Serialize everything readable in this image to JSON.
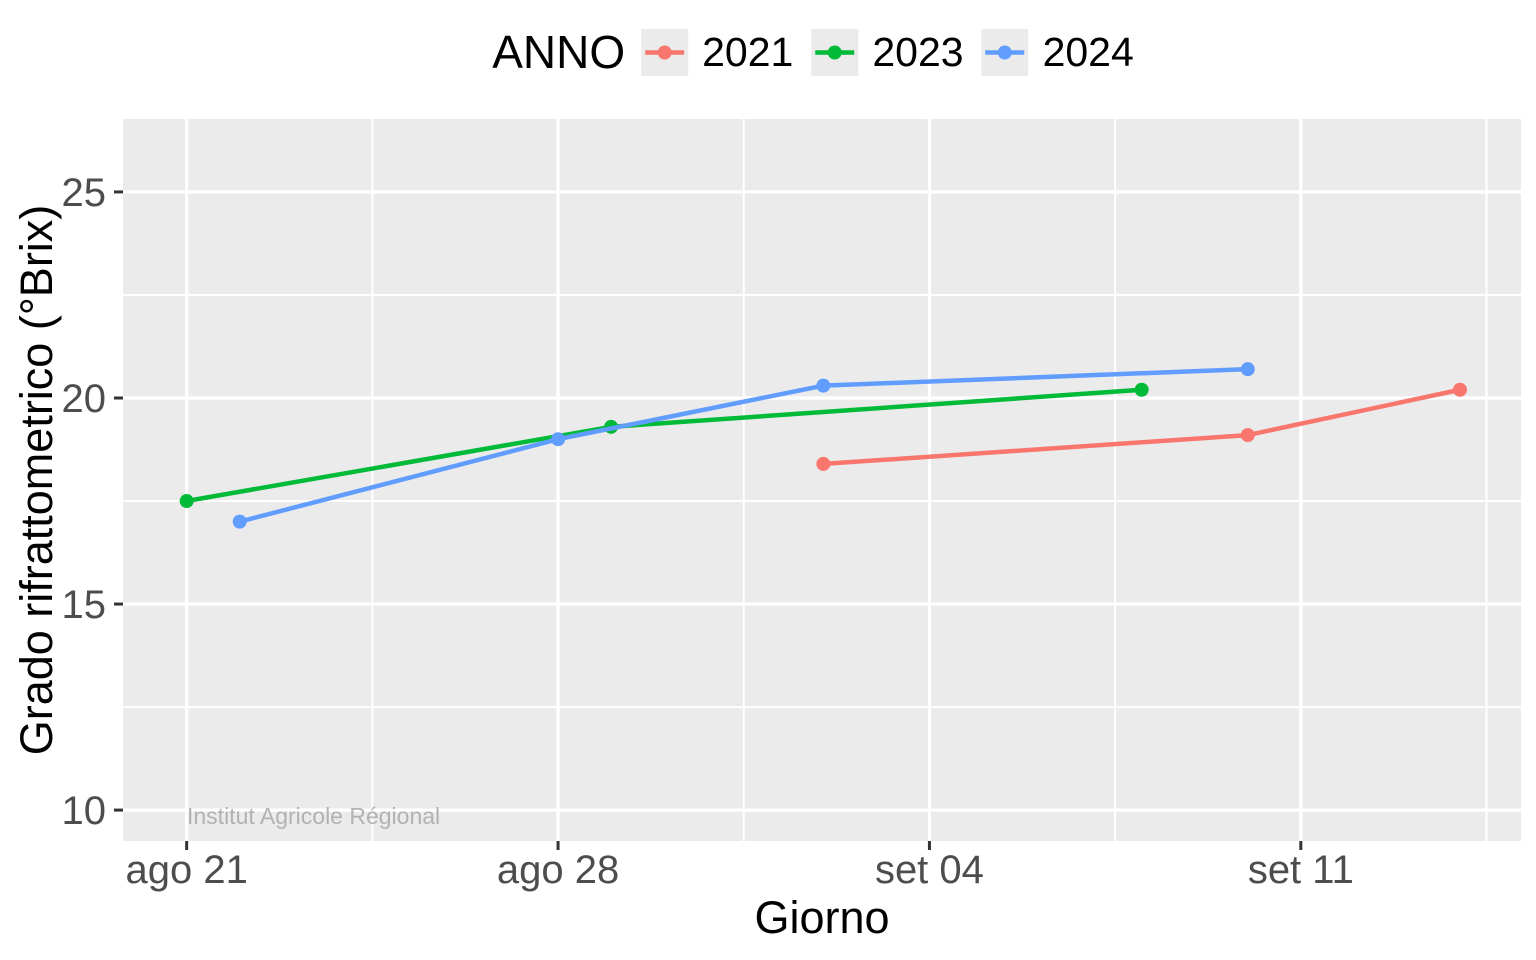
{
  "legend": {
    "title": "ANNO",
    "items": [
      {
        "label": "2021",
        "color": "#F8766D"
      },
      {
        "label": "2023",
        "color": "#00BA38"
      },
      {
        "label": "2024",
        "color": "#619CFF"
      }
    ]
  },
  "axes": {
    "x_title": "Giorno",
    "y_title": "Grado rifrattometrico (°Brix)"
  },
  "watermark": "Institut Agricole Régional",
  "chart_data": {
    "type": "line",
    "title": "",
    "xlabel": "Giorno",
    "ylabel": "Grado rifrattometrico (°Brix)",
    "legend_title": "ANNO",
    "legend_position": "top",
    "grid": true,
    "panel_bg": "#EBEBEB",
    "grid_color": "#FFFFFF",
    "tick_label_color": "#4d4d4d",
    "x_unit": "days since ago 21",
    "x_ticks": [
      {
        "day": 0,
        "label": "ago 21"
      },
      {
        "day": 7,
        "label": "ago 28"
      },
      {
        "day": 14,
        "label": "set 04"
      },
      {
        "day": 21,
        "label": "set 11"
      }
    ],
    "x_minor_days": [
      3.5,
      10.5,
      17.5,
      24.5
    ],
    "y_ticks": [
      10,
      15,
      20,
      25
    ],
    "y_minor": [
      12.5,
      17.5,
      22.5
    ],
    "x_domain_days": [
      -1.2,
      25.15
    ],
    "y_domain": [
      9.25,
      26.77
    ],
    "series": [
      {
        "name": "2021",
        "color": "#F8766D",
        "points": [
          {
            "date": "set 02",
            "day": 12,
            "value": 18.4
          },
          {
            "date": "set 10",
            "day": 20,
            "value": 19.1
          },
          {
            "date": "set 14",
            "day": 24,
            "value": 20.2
          }
        ]
      },
      {
        "name": "2023",
        "color": "#00BA38",
        "points": [
          {
            "date": "ago 21",
            "day": 0,
            "value": 17.5
          },
          {
            "date": "ago 29",
            "day": 8,
            "value": 19.3
          },
          {
            "date": "set 08",
            "day": 18,
            "value": 20.2
          }
        ]
      },
      {
        "name": "2024",
        "color": "#619CFF",
        "points": [
          {
            "date": "ago 22",
            "day": 1,
            "value": 17.0
          },
          {
            "date": "ago 28",
            "day": 7,
            "value": 19.0
          },
          {
            "date": "set 02",
            "day": 12,
            "value": 20.3
          },
          {
            "date": "set 10",
            "day": 20,
            "value": 20.7
          }
        ]
      }
    ]
  }
}
